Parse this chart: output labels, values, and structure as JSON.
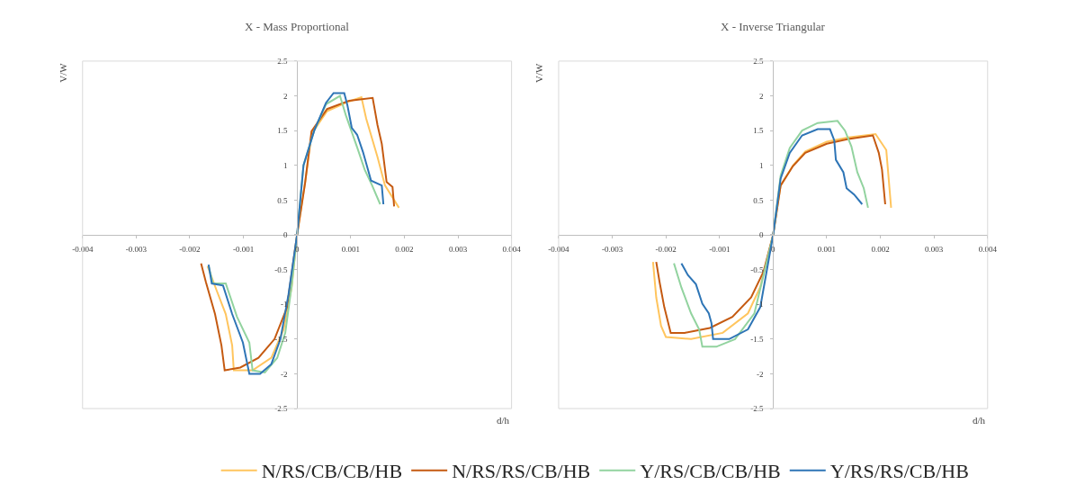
{
  "chart_data": [
    {
      "type": "line",
      "title": "X - Mass Proportional",
      "xlabel": "d/h",
      "ylabel": "V/W",
      "xlim": [
        -0.004,
        0.004
      ],
      "ylim": [
        -2.5,
        2.5
      ],
      "xticks": [
        -0.004,
        -0.003,
        -0.002,
        -0.001,
        0,
        0.001,
        0.002,
        0.003,
        0.004
      ],
      "yticks": [
        -2.5,
        -2,
        -1.5,
        -1,
        -0.5,
        0,
        0.5,
        1,
        1.5,
        2,
        2.5
      ],
      "grid": false,
      "legend": "bottom",
      "line_style": "solid",
      "marker": "none",
      "series": [
        {
          "name": "N/RS/CB/CB/HB",
          "color": "#ffc55e",
          "x": [
            -0.00167,
            -0.0015,
            -0.00133,
            -0.00121,
            -0.00118,
            -0.00083,
            -0.00048,
            -0.00025,
            -0.0001,
            0,
            0.00015,
            0.00027,
            0.00056,
            0.00097,
            0.0012,
            0.00129,
            0.0015,
            0.00164,
            0.0019
          ],
          "values": [
            -0.45,
            -0.8,
            -1.14,
            -1.59,
            -1.95,
            -1.95,
            -1.77,
            -1.36,
            -0.75,
            0,
            0.75,
            1.45,
            1.78,
            1.92,
            1.98,
            1.67,
            1.12,
            0.71,
            0.39
          ]
        },
        {
          "name": "N/RS/RS/CB/HB",
          "color": "#c55a11",
          "x": [
            -0.00179,
            -0.0017,
            -0.00153,
            -0.00141,
            -0.00135,
            -0.00106,
            -0.00072,
            -0.00042,
            -0.00019,
            0,
            0.00015,
            0.00027,
            0.00056,
            0.00097,
            0.00141,
            0.0015,
            0.00158,
            0.00167,
            0.00178,
            0.00181
          ],
          "values": [
            -0.41,
            -0.68,
            -1.14,
            -1.59,
            -1.95,
            -1.91,
            -1.77,
            -1.5,
            -1.05,
            0,
            0.75,
            1.49,
            1.81,
            1.93,
            1.97,
            1.58,
            1.31,
            0.76,
            0.69,
            0.41
          ]
        },
        {
          "name": "Y/RS/CB/CB/HB",
          "color": "#92d39f",
          "x": [
            -0.00165,
            -0.00157,
            -0.00133,
            -0.00112,
            -0.00089,
            -0.00083,
            -0.0006,
            -0.00037,
            -0.00022,
            -0.0001,
            0,
            0.00012,
            0.00032,
            0.00054,
            0.0008,
            0.00091,
            0.00112,
            0.00126,
            0.0014,
            0.00155
          ],
          "values": [
            -0.45,
            -0.7,
            -0.7,
            -1.18,
            -1.55,
            -1.95,
            -1.98,
            -1.77,
            -1.41,
            -0.73,
            0,
            1,
            1.5,
            1.88,
            2.0,
            1.72,
            1.26,
            0.94,
            0.71,
            0.44
          ]
        },
        {
          "name": "Y/RS/RS/CB/HB",
          "color": "#2e75b6",
          "x": [
            -0.00165,
            -0.00159,
            -0.00138,
            -0.00121,
            -0.00101,
            -0.00089,
            -0.00069,
            -0.00048,
            -0.00031,
            -0.00016,
            0,
            0.00012,
            0.00032,
            0.00054,
            0.00068,
            0.00088,
            0.00094,
            0.00102,
            0.00112,
            0.00123,
            0.00138,
            0.00158,
            0.00161
          ],
          "values": [
            -0.43,
            -0.7,
            -0.73,
            -1.14,
            -1.55,
            -2.0,
            -2.0,
            -1.86,
            -1.5,
            -0.86,
            0,
            1,
            1.5,
            1.9,
            2.04,
            2.04,
            1.86,
            1.54,
            1.44,
            1.19,
            0.78,
            0.71,
            0.44
          ]
        }
      ]
    },
    {
      "type": "line",
      "title": "X - Inverse Triangular",
      "xlabel": "d/h",
      "ylabel": "V/W",
      "xlim": [
        -0.004,
        0.004
      ],
      "ylim": [
        -2.5,
        2.5
      ],
      "xticks": [
        -0.004,
        -0.003,
        -0.002,
        -0.001,
        0,
        0.001,
        0.002,
        0.003,
        0.004
      ],
      "yticks": [
        -2.5,
        -2,
        -1.5,
        -1,
        -0.5,
        0,
        0.5,
        1,
        1.5,
        2,
        2.5
      ],
      "grid": false,
      "legend": "bottom",
      "line_style": "solid",
      "marker": "none",
      "series": [
        {
          "name": "N/RS/CB/CB/HB",
          "color": "#ffc55e",
          "x": [
            -0.00224,
            -0.00218,
            -0.00209,
            -0.002,
            -0.00153,
            -0.00094,
            -0.00047,
            -0.00024,
            0,
            0.00014,
            0.00037,
            0.0006,
            0.001,
            0.0014,
            0.00191,
            0.00211,
            0.0022
          ],
          "values": [
            -0.39,
            -0.9,
            -1.31,
            -1.47,
            -1.5,
            -1.41,
            -1.13,
            -0.75,
            0,
            0.71,
            1.0,
            1.2,
            1.34,
            1.4,
            1.45,
            1.22,
            0.39
          ]
        },
        {
          "name": "N/RS/RS/CB/HB",
          "color": "#c55a11",
          "x": [
            -0.00218,
            -0.00212,
            -0.00203,
            -0.00191,
            -0.00165,
            -0.00118,
            -0.00076,
            -0.00041,
            -0.00018,
            0,
            0.00014,
            0.00037,
            0.0006,
            0.001,
            0.0014,
            0.00186,
            0.00197,
            0.00203,
            0.00209
          ],
          "values": [
            -0.39,
            -0.67,
            -1.04,
            -1.41,
            -1.41,
            -1.34,
            -1.18,
            -0.9,
            -0.53,
            0,
            0.71,
            0.99,
            1.18,
            1.31,
            1.38,
            1.43,
            1.18,
            0.94,
            0.44
          ]
        },
        {
          "name": "Y/RS/CB/CB/HB",
          "color": "#92d39f",
          "x": [
            -0.00185,
            -0.00171,
            -0.00153,
            -0.00138,
            -0.00132,
            -0.00106,
            -0.00071,
            -0.00035,
            0,
            0.00014,
            0.00031,
            0.00054,
            0.00083,
            0.0012,
            0.00134,
            0.00146,
            0.00157,
            0.00169,
            0.00177
          ],
          "values": [
            -0.41,
            -0.76,
            -1.13,
            -1.36,
            -1.61,
            -1.61,
            -1.5,
            -1.13,
            0,
            0.85,
            1.25,
            1.5,
            1.61,
            1.64,
            1.5,
            1.27,
            0.9,
            0.67,
            0.39
          ]
        },
        {
          "name": "Y/RS/RS/CB/HB",
          "color": "#2e75b6",
          "x": [
            -0.00171,
            -0.00159,
            -0.00144,
            -0.00132,
            -0.0012,
            -0.00115,
            -0.00112,
            -0.00082,
            -0.00047,
            -0.00024,
            0,
            0.00014,
            0.00031,
            0.00054,
            0.00083,
            0.00106,
            0.00114,
            0.00117,
            0.00131,
            0.00137,
            0.00151,
            0.00166
          ],
          "values": [
            -0.41,
            -0.58,
            -0.71,
            -0.99,
            -1.13,
            -1.27,
            -1.5,
            -1.5,
            -1.36,
            -1.04,
            0,
            0.81,
            1.18,
            1.43,
            1.52,
            1.52,
            1.36,
            1.08,
            0.9,
            0.67,
            0.58,
            0.44
          ]
        }
      ]
    }
  ]
}
